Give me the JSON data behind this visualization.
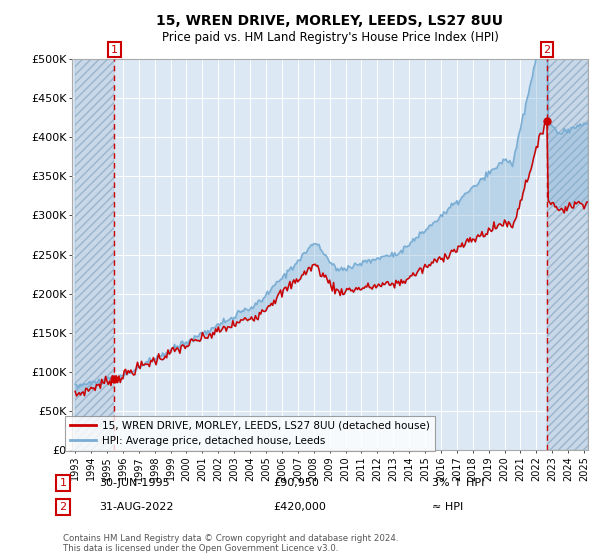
{
  "title": "15, WREN DRIVE, MORLEY, LEEDS, LS27 8UU",
  "subtitle": "Price paid vs. HM Land Registry's House Price Index (HPI)",
  "ylim": [
    0,
    500000
  ],
  "yticks": [
    0,
    50000,
    100000,
    150000,
    200000,
    250000,
    300000,
    350000,
    400000,
    450000,
    500000
  ],
  "ytick_labels": [
    "£0",
    "£50K",
    "£100K",
    "£150K",
    "£200K",
    "£250K",
    "£300K",
    "£350K",
    "£400K",
    "£450K",
    "£500K"
  ],
  "hpi_color": "#7aadd4",
  "price_color": "#cc0000",
  "t1": 1995.458,
  "t2": 2022.667,
  "p1": 90950,
  "p2": 420000,
  "legend_label1": "15, WREN DRIVE, MORLEY, LEEDS, LS27 8UU (detached house)",
  "legend_label2": "HPI: Average price, detached house, Leeds",
  "footnote": "Contains HM Land Registry data © Crown copyright and database right 2024.\nThis data is licensed under the Open Government Licence v3.0.",
  "info1_label": "1",
  "info1_date": "30-JUN-1995",
  "info1_price": "£90,950",
  "info1_hpi": "3% ↑ HPI",
  "info2_label": "2",
  "info2_date": "31-AUG-2022",
  "info2_price": "£420,000",
  "info2_hpi": "≈ HPI",
  "background_plot": "#dce9f5",
  "background_hatch": "#c8d8e8",
  "grid_color": "#ffffff",
  "year_start": 1993,
  "year_end": 2025
}
